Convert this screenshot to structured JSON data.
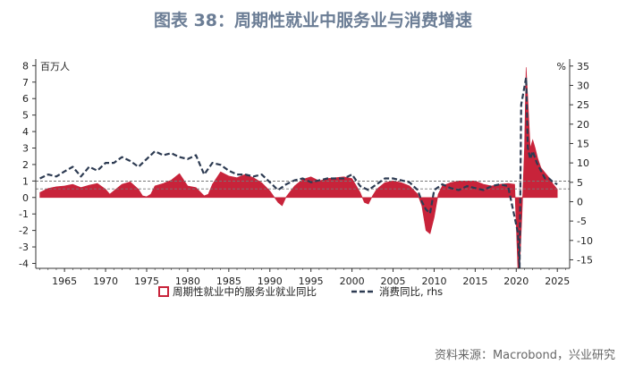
{
  "title": "图表 38：周期性就业中服务业与消费增速",
  "source": "资料来源：Macrobond，兴业研究",
  "colors": {
    "employment_fill": "#c8233a",
    "consumption_line": "#2d3b52",
    "title": "#6b7d95"
  },
  "chart_data": {
    "type": "area",
    "left_unit": "百万人",
    "right_unit": "%",
    "xlim": [
      1961.5,
      2026.5
    ],
    "ylim_left": [
      -4.3,
      8.4
    ],
    "ylim_right": [
      -17.2,
      36.8
    ],
    "x_ticks": [
      "1965",
      "1970",
      "1975",
      "1980",
      "1985",
      "1990",
      "1995",
      "2000",
      "2005",
      "2010",
      "2015",
      "2020",
      "2025"
    ],
    "y_left_ticks": [
      "8",
      "7",
      "6",
      "5",
      "4",
      "3",
      "2",
      "1",
      "0",
      "-1",
      "-2",
      "-3",
      "-4"
    ],
    "y_right_ticks": [
      "35",
      "30",
      "25",
      "20",
      "15",
      "10",
      "5",
      "0",
      "-5",
      "-10",
      "-15"
    ],
    "legend": [
      "周期性就业中的服务业就业同比",
      "消费同比, rhs"
    ],
    "reference_lines_right_axis": [
      5.3,
      3.3
    ],
    "series": [
      {
        "name": "周期性就业中的服务业就业同比",
        "axis": "left",
        "style": "area",
        "x": [
          1962,
          1963,
          1964,
          1965,
          1966,
          1967,
          1968,
          1969,
          1970,
          1970.5,
          1971,
          1972,
          1973,
          1974,
          1974.5,
          1975,
          1975.5,
          1976,
          1977,
          1978,
          1979,
          1980,
          1981,
          1982,
          1982.5,
          1983,
          1984,
          1985,
          1986,
          1987,
          1988,
          1989,
          1990,
          1991,
          1991.5,
          1992,
          1993,
          1994,
          1995,
          1996,
          1997,
          1998,
          1999,
          2000,
          2001,
          2001.5,
          2002,
          2002.5,
          2003,
          2004,
          2005,
          2006,
          2007,
          2008,
          2008.5,
          2009,
          2009.5,
          2010,
          2010.5,
          2011,
          2012,
          2013,
          2014,
          2015,
          2016,
          2017,
          2018,
          2019,
          2019.8,
          2020.2,
          2020.4,
          2020.7,
          2021,
          2021.2,
          2021.4,
          2021.7,
          2022,
          2022.3,
          2022.6,
          2023,
          2023.5,
          2024,
          2024.5,
          2025
        ],
        "values": [
          0.3,
          0.55,
          0.65,
          0.7,
          0.8,
          0.6,
          0.75,
          0.85,
          0.5,
          0.2,
          0.4,
          0.8,
          0.95,
          0.5,
          0.1,
          0.05,
          0.2,
          0.7,
          0.85,
          1.05,
          1.45,
          0.7,
          0.6,
          0.1,
          0.2,
          0.8,
          1.55,
          1.3,
          1.2,
          1.4,
          1.2,
          0.9,
          0.4,
          -0.3,
          -0.5,
          0.05,
          0.7,
          1.1,
          1.25,
          1.0,
          1.15,
          1.2,
          1.25,
          1.15,
          0.3,
          -0.3,
          -0.4,
          0.1,
          0.5,
          0.9,
          1.0,
          0.9,
          0.7,
          0.2,
          -0.5,
          -2.0,
          -2.2,
          -1.2,
          0.2,
          0.7,
          0.9,
          1.0,
          1.0,
          1.0,
          0.8,
          0.7,
          0.8,
          0.85,
          0.8,
          -4.3,
          -4.3,
          -1.0,
          3.0,
          7.9,
          6.0,
          3.0,
          3.5,
          3.0,
          2.4,
          1.8,
          1.5,
          1.2,
          0.8,
          0.5
        ]
      },
      {
        "name": "消费同比, rhs",
        "axis": "right",
        "style": "dashed-line",
        "x": [
          1962,
          1963,
          1964,
          1965,
          1966,
          1967,
          1968,
          1969,
          1970,
          1971,
          1972,
          1973,
          1974,
          1975,
          1976,
          1977,
          1978,
          1979,
          1980,
          1981,
          1982,
          1983,
          1984,
          1985,
          1986,
          1987,
          1988,
          1989,
          1990,
          1991,
          1992,
          1993,
          1994,
          1995,
          1996,
          1997,
          1998,
          1999,
          2000,
          2001,
          2002,
          2003,
          2004,
          2005,
          2006,
          2007,
          2008,
          2008.5,
          2009,
          2009.5,
          2010,
          2011,
          2012,
          2013,
          2014,
          2015,
          2016,
          2017,
          2018,
          2019,
          2020.2,
          2020.4,
          2020.6,
          2021.2,
          2021.4,
          2021.7,
          2022,
          2022.5,
          2023,
          2023.5,
          2024,
          2024.5,
          2025
        ],
        "values": [
          6,
          7,
          6.5,
          7.8,
          9,
          6.5,
          9,
          8,
          10,
          10,
          11.5,
          10.5,
          9,
          11,
          13,
          12,
          12.5,
          11.5,
          11,
          12,
          7,
          10,
          9.5,
          8,
          7,
          7,
          6.5,
          7,
          5,
          3,
          4.5,
          5.5,
          6,
          5,
          5.5,
          6,
          6,
          6,
          7,
          4,
          3,
          4.5,
          6,
          6,
          5.5,
          5,
          3,
          0,
          -2,
          -3,
          3,
          4.5,
          3.5,
          3,
          4,
          3.5,
          3,
          4,
          4.5,
          4,
          -8,
          -17,
          25,
          32,
          14,
          11,
          13,
          10,
          8,
          6,
          6,
          5,
          4.5
        ]
      }
    ]
  }
}
